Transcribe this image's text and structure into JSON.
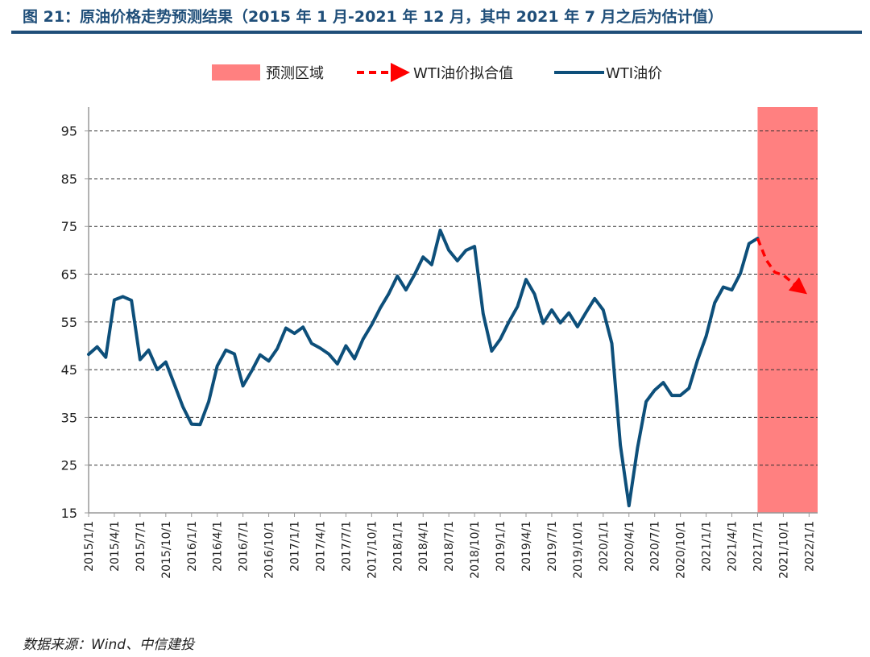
{
  "figure_title": "图 21：原油价格走势预测结果（2015 年 1 月-2021 年 12 月，其中 2021 年 7 月之后为估计值）",
  "source_note": "数据来源：Wind、中信建投",
  "colors": {
    "title": "#1f4e79",
    "wti_line": "#0d4f7a",
    "fit_line": "#ff0000",
    "forecast_region": "#ff8080",
    "grid": "#333333",
    "axis": "#999999"
  },
  "chart_data": {
    "type": "line",
    "title": "",
    "xlabel": "",
    "ylabel": "",
    "ylim": [
      15,
      100
    ],
    "yticks": [
      15,
      25,
      35,
      45,
      55,
      65,
      75,
      85,
      95
    ],
    "grid": "horizontal-dashed",
    "legend_position": "top",
    "x_tick_labels": [
      "2015/1/1",
      "2015/4/1",
      "2015/7/1",
      "2015/10/1",
      "2016/1/1",
      "2016/4/1",
      "2016/7/1",
      "2016/10/1",
      "2017/1/1",
      "2017/4/1",
      "2017/7/1",
      "2017/10/1",
      "2018/1/1",
      "2018/4/1",
      "2018/7/1",
      "2018/10/1",
      "2019/1/1",
      "2019/4/1",
      "2019/7/1",
      "2019/10/1",
      "2020/1/1",
      "2020/4/1",
      "2020/7/1",
      "2020/10/1",
      "2021/1/1",
      "2021/4/1",
      "2021/7/1",
      "2021/10/1",
      "2022/1/1"
    ],
    "forecast_region": {
      "name": "预测区域",
      "x_start": "2021/7/1",
      "x_end": "2022/2/1"
    },
    "series": [
      {
        "name": "WTI油价",
        "style": "solid",
        "x_start": "2015/1/1",
        "x_step": "month",
        "values": [
          48.2,
          49.8,
          47.6,
          59.6,
          60.3,
          59.5,
          47.1,
          49.1,
          45.0,
          46.6,
          41.9,
          37.2,
          33.6,
          33.5,
          38.3,
          45.8,
          49.1,
          48.3,
          41.6,
          44.7,
          48.1,
          46.8,
          49.4,
          53.7,
          52.6,
          53.9,
          50.5,
          49.5,
          48.3,
          46.2,
          50.0,
          47.3,
          51.4,
          54.4,
          57.9,
          60.9,
          64.6,
          61.7,
          64.9,
          68.6,
          67.0,
          74.2,
          70.0,
          67.8,
          70.0,
          70.8,
          56.7,
          48.9,
          51.4,
          55.0,
          58.2,
          63.9,
          60.8,
          54.7,
          57.5,
          54.8,
          56.9,
          54.0,
          57.0,
          59.9,
          57.5,
          50.5,
          29.2,
          16.5,
          28.6,
          38.3,
          40.7,
          42.3,
          39.6,
          39.6,
          41.1,
          47.0,
          52.0,
          59.0,
          62.3,
          61.7,
          65.2,
          71.4,
          72.5
        ]
      },
      {
        "name": "WTI油价拟合值",
        "style": "dashed-arrow",
        "x_start": "2021/7/1",
        "x_step": "month",
        "values": [
          72.5,
          68.0,
          65.4,
          64.8,
          63.3,
          61.9
        ]
      }
    ]
  }
}
